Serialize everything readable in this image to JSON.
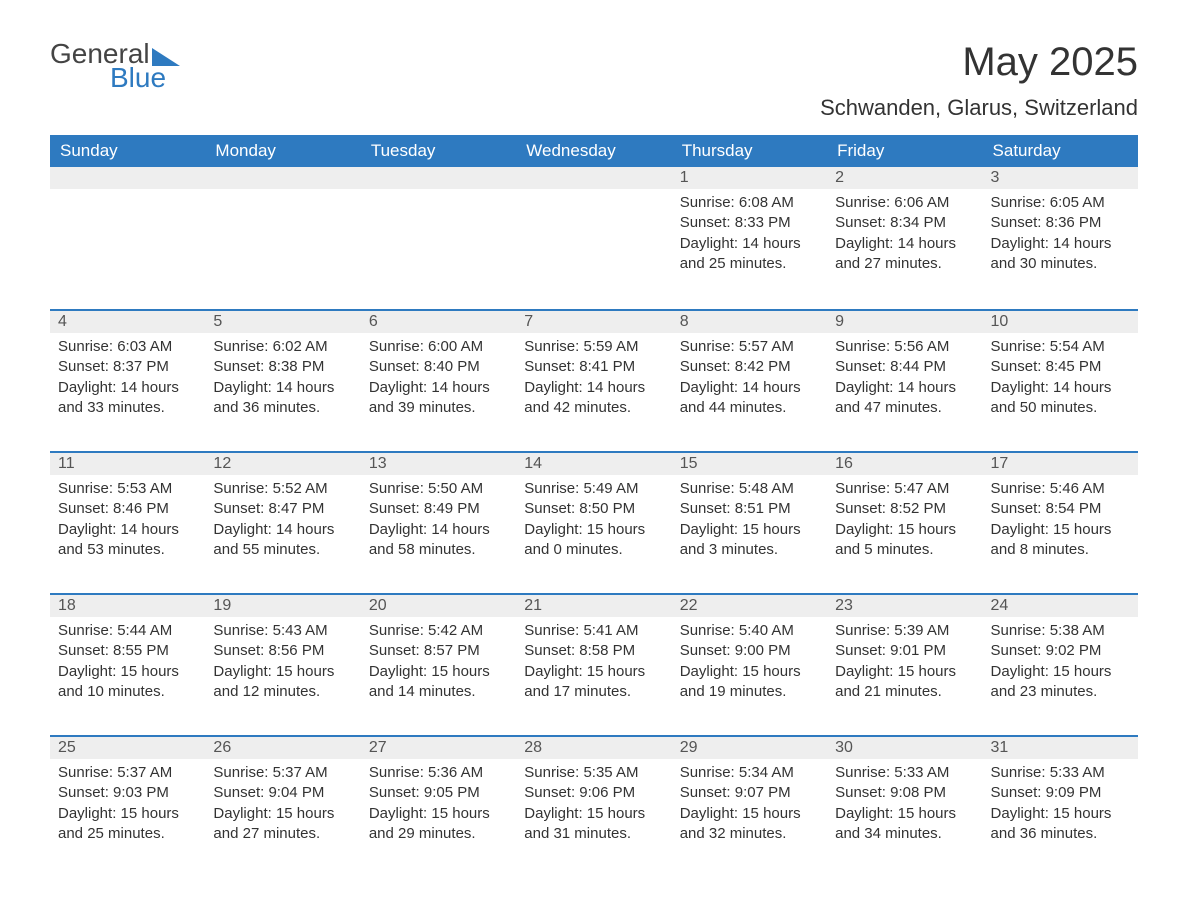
{
  "logo": {
    "text1": "General",
    "text2": "Blue"
  },
  "title": "May 2025",
  "location": "Schwanden, Glarus, Switzerland",
  "colors": {
    "accent": "#2e7ac0",
    "header_bg": "#2e7ac0",
    "header_text": "#ffffff",
    "daynum_bg": "#eeeeee",
    "body_text": "#333333",
    "background": "#ffffff"
  },
  "weekdays": [
    "Sunday",
    "Monday",
    "Tuesday",
    "Wednesday",
    "Thursday",
    "Friday",
    "Saturday"
  ],
  "weeks": [
    [
      {
        "day": "",
        "sunrise": "",
        "sunset": "",
        "daylight": "",
        "empty": true
      },
      {
        "day": "",
        "sunrise": "",
        "sunset": "",
        "daylight": "",
        "empty": true
      },
      {
        "day": "",
        "sunrise": "",
        "sunset": "",
        "daylight": "",
        "empty": true
      },
      {
        "day": "",
        "sunrise": "",
        "sunset": "",
        "daylight": "",
        "empty": true
      },
      {
        "day": "1",
        "sunrise": "Sunrise: 6:08 AM",
        "sunset": "Sunset: 8:33 PM",
        "daylight": "Daylight: 14 hours and 25 minutes."
      },
      {
        "day": "2",
        "sunrise": "Sunrise: 6:06 AM",
        "sunset": "Sunset: 8:34 PM",
        "daylight": "Daylight: 14 hours and 27 minutes."
      },
      {
        "day": "3",
        "sunrise": "Sunrise: 6:05 AM",
        "sunset": "Sunset: 8:36 PM",
        "daylight": "Daylight: 14 hours and 30 minutes."
      }
    ],
    [
      {
        "day": "4",
        "sunrise": "Sunrise: 6:03 AM",
        "sunset": "Sunset: 8:37 PM",
        "daylight": "Daylight: 14 hours and 33 minutes."
      },
      {
        "day": "5",
        "sunrise": "Sunrise: 6:02 AM",
        "sunset": "Sunset: 8:38 PM",
        "daylight": "Daylight: 14 hours and 36 minutes."
      },
      {
        "day": "6",
        "sunrise": "Sunrise: 6:00 AM",
        "sunset": "Sunset: 8:40 PM",
        "daylight": "Daylight: 14 hours and 39 minutes."
      },
      {
        "day": "7",
        "sunrise": "Sunrise: 5:59 AM",
        "sunset": "Sunset: 8:41 PM",
        "daylight": "Daylight: 14 hours and 42 minutes."
      },
      {
        "day": "8",
        "sunrise": "Sunrise: 5:57 AM",
        "sunset": "Sunset: 8:42 PM",
        "daylight": "Daylight: 14 hours and 44 minutes."
      },
      {
        "day": "9",
        "sunrise": "Sunrise: 5:56 AM",
        "sunset": "Sunset: 8:44 PM",
        "daylight": "Daylight: 14 hours and 47 minutes."
      },
      {
        "day": "10",
        "sunrise": "Sunrise: 5:54 AM",
        "sunset": "Sunset: 8:45 PM",
        "daylight": "Daylight: 14 hours and 50 minutes."
      }
    ],
    [
      {
        "day": "11",
        "sunrise": "Sunrise: 5:53 AM",
        "sunset": "Sunset: 8:46 PM",
        "daylight": "Daylight: 14 hours and 53 minutes."
      },
      {
        "day": "12",
        "sunrise": "Sunrise: 5:52 AM",
        "sunset": "Sunset: 8:47 PM",
        "daylight": "Daylight: 14 hours and 55 minutes."
      },
      {
        "day": "13",
        "sunrise": "Sunrise: 5:50 AM",
        "sunset": "Sunset: 8:49 PM",
        "daylight": "Daylight: 14 hours and 58 minutes."
      },
      {
        "day": "14",
        "sunrise": "Sunrise: 5:49 AM",
        "sunset": "Sunset: 8:50 PM",
        "daylight": "Daylight: 15 hours and 0 minutes."
      },
      {
        "day": "15",
        "sunrise": "Sunrise: 5:48 AM",
        "sunset": "Sunset: 8:51 PM",
        "daylight": "Daylight: 15 hours and 3 minutes."
      },
      {
        "day": "16",
        "sunrise": "Sunrise: 5:47 AM",
        "sunset": "Sunset: 8:52 PM",
        "daylight": "Daylight: 15 hours and 5 minutes."
      },
      {
        "day": "17",
        "sunrise": "Sunrise: 5:46 AM",
        "sunset": "Sunset: 8:54 PM",
        "daylight": "Daylight: 15 hours and 8 minutes."
      }
    ],
    [
      {
        "day": "18",
        "sunrise": "Sunrise: 5:44 AM",
        "sunset": "Sunset: 8:55 PM",
        "daylight": "Daylight: 15 hours and 10 minutes."
      },
      {
        "day": "19",
        "sunrise": "Sunrise: 5:43 AM",
        "sunset": "Sunset: 8:56 PM",
        "daylight": "Daylight: 15 hours and 12 minutes."
      },
      {
        "day": "20",
        "sunrise": "Sunrise: 5:42 AM",
        "sunset": "Sunset: 8:57 PM",
        "daylight": "Daylight: 15 hours and 14 minutes."
      },
      {
        "day": "21",
        "sunrise": "Sunrise: 5:41 AM",
        "sunset": "Sunset: 8:58 PM",
        "daylight": "Daylight: 15 hours and 17 minutes."
      },
      {
        "day": "22",
        "sunrise": "Sunrise: 5:40 AM",
        "sunset": "Sunset: 9:00 PM",
        "daylight": "Daylight: 15 hours and 19 minutes."
      },
      {
        "day": "23",
        "sunrise": "Sunrise: 5:39 AM",
        "sunset": "Sunset: 9:01 PM",
        "daylight": "Daylight: 15 hours and 21 minutes."
      },
      {
        "day": "24",
        "sunrise": "Sunrise: 5:38 AM",
        "sunset": "Sunset: 9:02 PM",
        "daylight": "Daylight: 15 hours and 23 minutes."
      }
    ],
    [
      {
        "day": "25",
        "sunrise": "Sunrise: 5:37 AM",
        "sunset": "Sunset: 9:03 PM",
        "daylight": "Daylight: 15 hours and 25 minutes."
      },
      {
        "day": "26",
        "sunrise": "Sunrise: 5:37 AM",
        "sunset": "Sunset: 9:04 PM",
        "daylight": "Daylight: 15 hours and 27 minutes."
      },
      {
        "day": "27",
        "sunrise": "Sunrise: 5:36 AM",
        "sunset": "Sunset: 9:05 PM",
        "daylight": "Daylight: 15 hours and 29 minutes."
      },
      {
        "day": "28",
        "sunrise": "Sunrise: 5:35 AM",
        "sunset": "Sunset: 9:06 PM",
        "daylight": "Daylight: 15 hours and 31 minutes."
      },
      {
        "day": "29",
        "sunrise": "Sunrise: 5:34 AM",
        "sunset": "Sunset: 9:07 PM",
        "daylight": "Daylight: 15 hours and 32 minutes."
      },
      {
        "day": "30",
        "sunrise": "Sunrise: 5:33 AM",
        "sunset": "Sunset: 9:08 PM",
        "daylight": "Daylight: 15 hours and 34 minutes."
      },
      {
        "day": "31",
        "sunrise": "Sunrise: 5:33 AM",
        "sunset": "Sunset: 9:09 PM",
        "daylight": "Daylight: 15 hours and 36 minutes."
      }
    ]
  ]
}
